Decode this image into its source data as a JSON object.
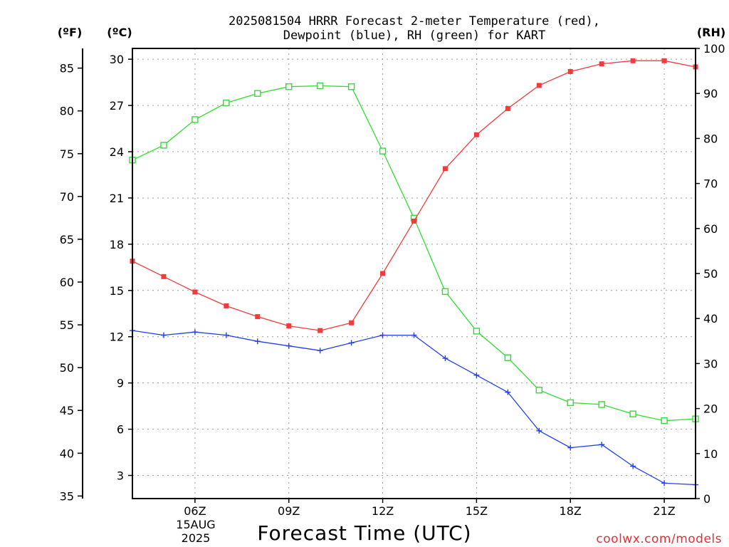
{
  "chart_data": {
    "type": "line",
    "title_lines": [
      "2025081504 HRRR Forecast 2-meter Temperature (red),",
      "Dewpoint (blue), RH (green) for KART"
    ],
    "xlabel": "Forecast Time (UTC)",
    "credit": "coolwx.com/models",
    "axis_units": {
      "fahrenheit": "(ºF)",
      "celsius": "(ºC)",
      "rh": "(RH)"
    },
    "x_hours_utc": [
      4,
      5,
      6,
      7,
      8,
      9,
      10,
      11,
      12,
      13,
      14,
      15,
      16,
      17,
      18,
      19,
      20,
      21,
      22
    ],
    "xlim": [
      4,
      22
    ],
    "x_ticks": [
      {
        "hour": 6,
        "label": "06Z"
      },
      {
        "hour": 9,
        "label": "09Z"
      },
      {
        "hour": 12,
        "label": "12Z"
      },
      {
        "hour": 15,
        "label": "15Z"
      },
      {
        "hour": 18,
        "label": "18Z"
      },
      {
        "hour": 21,
        "label": "21Z"
      }
    ],
    "date_label": [
      "15AUG",
      "2025"
    ],
    "celsius_axis": {
      "ylim": [
        1.5,
        30.7
      ],
      "ticks": [
        3,
        6,
        9,
        12,
        15,
        18,
        21,
        24,
        27,
        30
      ]
    },
    "fahrenheit_axis": {
      "ylim": [
        34.7,
        87.3
      ],
      "ticks": [
        35,
        40,
        45,
        50,
        55,
        60,
        65,
        70,
        75,
        80,
        85
      ]
    },
    "rh_axis": {
      "ylim": [
        0,
        100
      ],
      "ticks": [
        0,
        10,
        20,
        30,
        40,
        50,
        60,
        70,
        80,
        90,
        100
      ]
    },
    "grid": true,
    "series": [
      {
        "name": "Temperature",
        "axis": "celsius",
        "color": "#f03c3c",
        "marker": "filled-square",
        "values": [
          16.9,
          15.9,
          14.9,
          14.0,
          13.3,
          12.7,
          12.4,
          12.9,
          16.1,
          19.5,
          22.9,
          25.1,
          26.8,
          28.3,
          29.2,
          29.7,
          29.9,
          29.9,
          29.5
        ]
      },
      {
        "name": "Dewpoint",
        "axis": "celsius",
        "color": "#2040f0",
        "marker": "plus",
        "values": [
          12.4,
          12.1,
          12.3,
          12.1,
          11.7,
          11.4,
          11.1,
          11.6,
          12.1,
          12.1,
          10.6,
          9.5,
          8.4,
          5.9,
          4.8,
          5.0,
          3.6,
          2.5,
          2.4
        ]
      },
      {
        "name": "RH",
        "axis": "rh",
        "color": "#30dd30",
        "marker": "open-square",
        "values": [
          75.2,
          78.5,
          84.2,
          87.9,
          90.0,
          91.5,
          91.7,
          91.5,
          77.2,
          62.3,
          46.0,
          37.2,
          31.3,
          24.1,
          21.3,
          20.9,
          18.8,
          17.3,
          17.7
        ]
      }
    ]
  }
}
